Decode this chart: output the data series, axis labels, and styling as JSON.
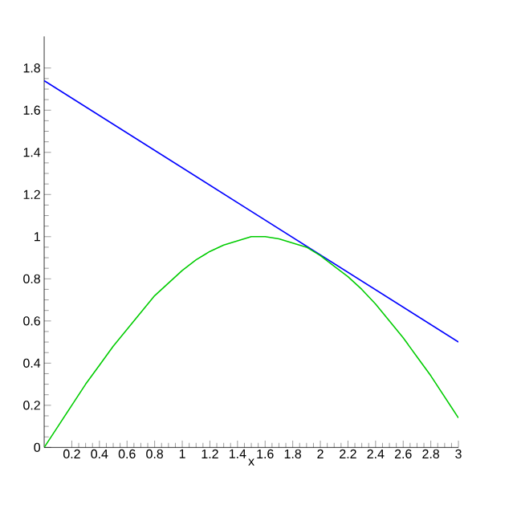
{
  "chart_data": {
    "type": "line",
    "xlabel": "x",
    "xlim": [
      0,
      3
    ],
    "ylim": [
      0,
      1.95
    ],
    "xticks": [
      0.2,
      0.4,
      0.6,
      0.8,
      1,
      1.2,
      1.4,
      1.6,
      1.8,
      2,
      2.2,
      2.4,
      2.6,
      2.8,
      3
    ],
    "yticks": [
      0,
      0.2,
      0.4,
      0.6,
      0.8,
      1,
      1.2,
      1.4,
      1.6,
      1.8
    ],
    "series": [
      {
        "color": "#0000ff",
        "x": [
          0,
          3
        ],
        "values": [
          1.74,
          0.5
        ]
      },
      {
        "color": "#00cc00",
        "x": [
          0,
          0.1,
          0.2,
          0.3,
          0.4,
          0.5,
          0.6,
          0.7,
          0.8,
          0.9,
          1,
          1.1,
          1.2,
          1.3,
          1.4,
          1.5,
          1.6,
          1.7,
          1.8,
          1.9,
          2,
          2.1,
          2.2,
          2.3,
          2.4,
          2.5,
          2.6,
          2.7,
          2.8,
          2.9,
          3
        ],
        "values": [
          0,
          0.1,
          0.2,
          0.3,
          0.39,
          0.48,
          0.56,
          0.64,
          0.72,
          0.78,
          0.84,
          0.89,
          0.93,
          0.96,
          0.98,
          1,
          1,
          0.99,
          0.97,
          0.95,
          0.91,
          0.86,
          0.81,
          0.75,
          0.68,
          0.6,
          0.52,
          0.43,
          0.34,
          0.24,
          0.14
        ]
      }
    ]
  }
}
